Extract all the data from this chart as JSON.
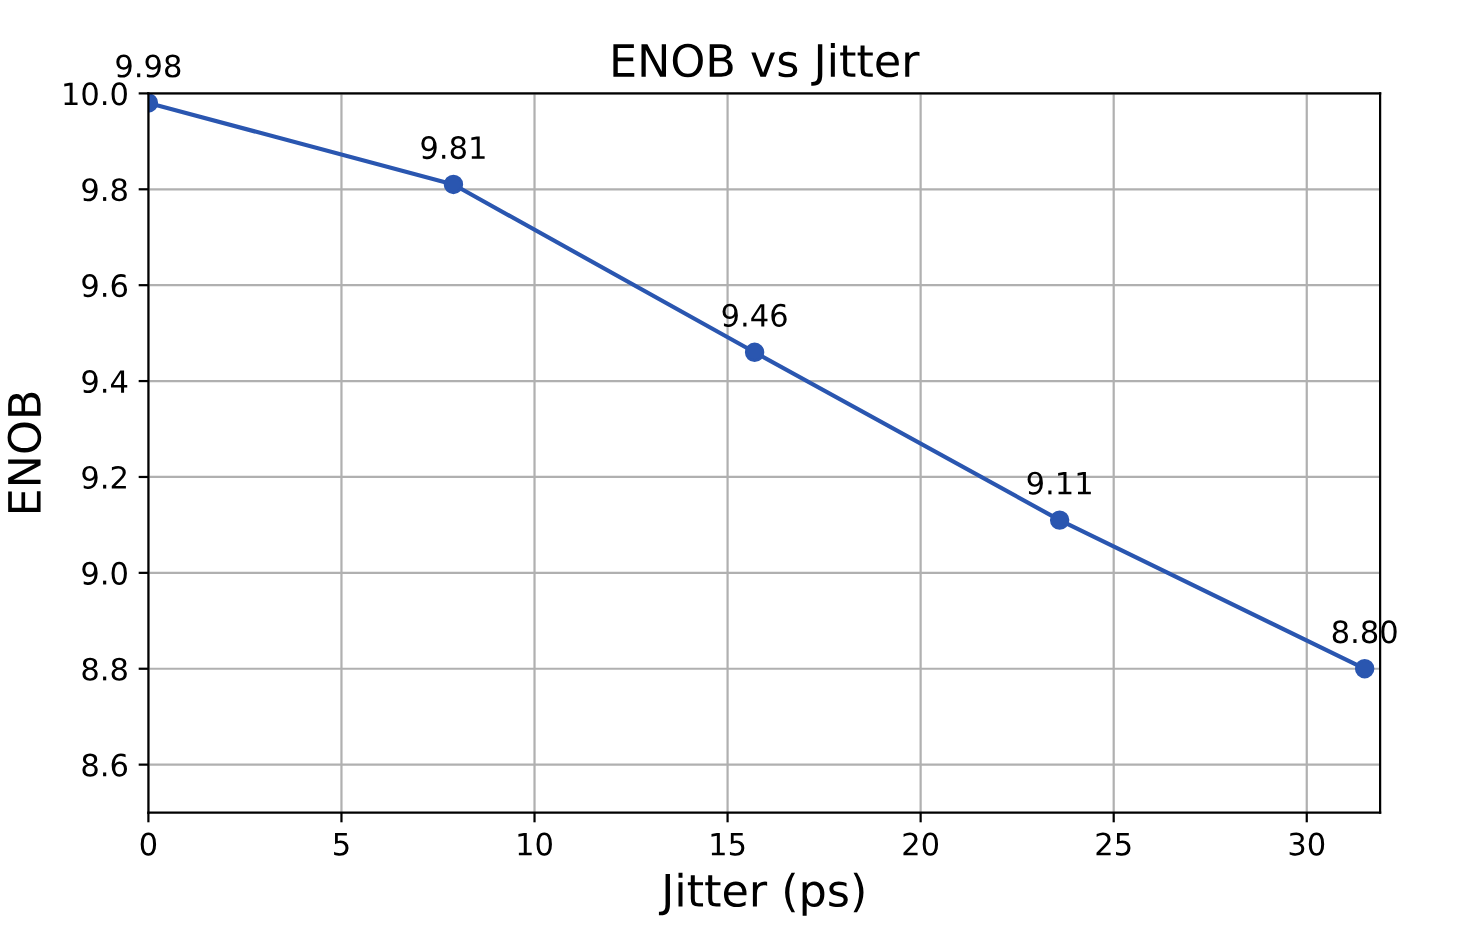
{
  "chart_data": {
    "type": "line",
    "title": "ENOB vs Jitter",
    "xlabel": "Jitter (ps)",
    "ylabel": "ENOB",
    "x": [
      0,
      7.9,
      15.7,
      23.6,
      31.5
    ],
    "series": [
      {
        "color": "#2a56b0",
        "values": [
          9.98,
          9.81,
          9.46,
          9.11,
          8.8
        ],
        "value_labels": [
          "9.98",
          "9.81",
          "9.46",
          "9.11",
          "8.80"
        ]
      }
    ],
    "xlim": [
      0,
      31.9
    ],
    "xticks": [
      0,
      5,
      10,
      15,
      20,
      25,
      30
    ],
    "ylim": [
      8.5,
      10.0
    ],
    "yticks": [
      {
        "value": 8.6,
        "label": "8.6"
      },
      {
        "value": 8.8,
        "label": "8.8"
      },
      {
        "value": 9.0,
        "label": "9.0"
      },
      {
        "value": 9.2,
        "label": "9.2"
      },
      {
        "value": 9.4,
        "label": "9.4"
      },
      {
        "value": 9.6,
        "label": "9.6"
      },
      {
        "value": 9.8,
        "label": "9.8"
      },
      {
        "value": 10.0,
        "label": "10.0"
      }
    ],
    "grid": true,
    "marker": "circle",
    "line_style": "solid"
  }
}
